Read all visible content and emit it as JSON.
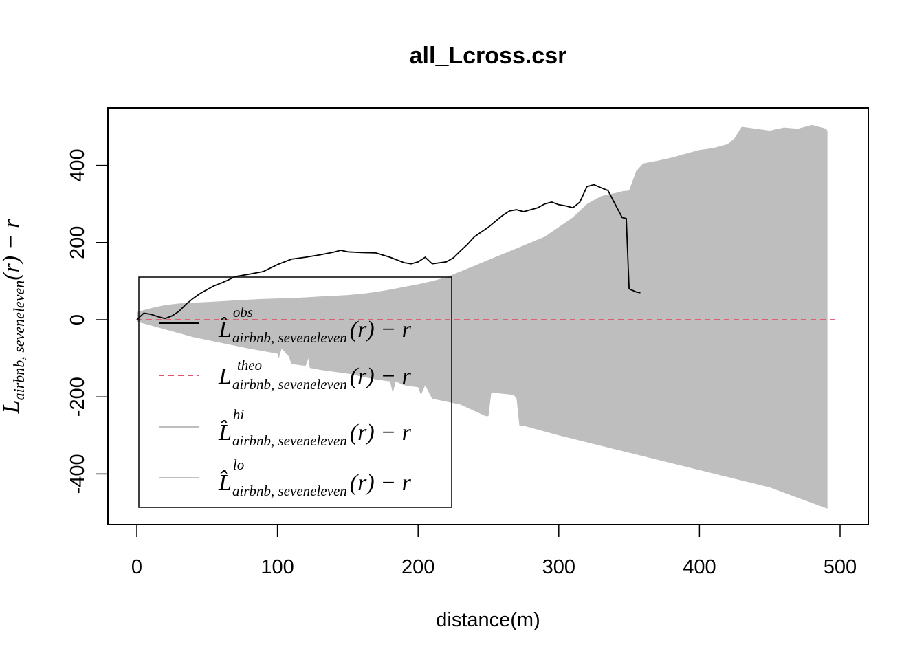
{
  "chart_data": {
    "type": "line",
    "title": "all_Lcross.csr",
    "xlabel": "distance(m)",
    "ylabel": {
      "base": "L",
      "sub": "airbnb, seveneleven",
      "suffix": "(r) − r"
    },
    "xlim": [
      0,
      500
    ],
    "ylim": [
      -480,
      480
    ],
    "xticks": [
      0,
      100,
      200,
      300,
      400,
      500
    ],
    "yticks": [
      -400,
      -200,
      0,
      200,
      400
    ],
    "legend_position": "bottom-left",
    "colors": {
      "obs": "#000000",
      "theo": "#DF536B",
      "envelope": "#BEBEBE"
    },
    "legend": [
      {
        "key": "obs",
        "base": "L̂",
        "sup": "obs",
        "sub": "airbnb, seveneleven",
        "suffix": "(r) − r"
      },
      {
        "key": "theo",
        "base": "L",
        "sup": "theo",
        "sub": "airbnb, seveneleven",
        "suffix": "(r) − r"
      },
      {
        "key": "hi",
        "base": "L̂",
        "sup": "hi",
        "sub": "airbnb, seveneleven",
        "suffix": "(r) − r"
      },
      {
        "key": "lo",
        "base": "L̂",
        "sup": "lo",
        "sub": "airbnb, seveneleven",
        "suffix": "(r) − r"
      }
    ],
    "series": [
      {
        "key": "obs",
        "style": "solid",
        "x": [
          0,
          5,
          10,
          15,
          20,
          25,
          30,
          35,
          40,
          45,
          50,
          55,
          60,
          65,
          70,
          75,
          80,
          90,
          100,
          110,
          120,
          130,
          140,
          145,
          150,
          160,
          170,
          180,
          190,
          195,
          200,
          205,
          210,
          220,
          225,
          230,
          235,
          240,
          250,
          255,
          260,
          265,
          270,
          275,
          280,
          285,
          290,
          295,
          300,
          305,
          310,
          315,
          320,
          325,
          330,
          335,
          340,
          345,
          348,
          350,
          355,
          358
        ],
        "y": [
          0,
          17,
          14,
          8,
          3,
          10,
          22,
          40,
          55,
          68,
          78,
          88,
          95,
          103,
          112,
          115,
          118,
          125,
          143,
          157,
          162,
          168,
          175,
          180,
          176,
          174,
          173,
          162,
          148,
          145,
          150,
          162,
          145,
          150,
          160,
          178,
          195,
          215,
          240,
          255,
          270,
          282,
          285,
          280,
          285,
          290,
          300,
          305,
          298,
          295,
          290,
          305,
          345,
          350,
          342,
          335,
          300,
          265,
          262,
          80,
          72,
          70
        ]
      },
      {
        "key": "theo",
        "style": "dashed",
        "x": [
          0,
          497
        ],
        "y": [
          0,
          0
        ]
      },
      {
        "key": "hi",
        "style": "band-upper",
        "x": [
          0,
          10,
          20,
          30,
          40,
          50,
          60,
          70,
          80,
          90,
          100,
          110,
          120,
          130,
          140,
          150,
          160,
          170,
          180,
          190,
          200,
          210,
          220,
          230,
          240,
          250,
          260,
          270,
          280,
          290,
          300,
          310,
          320,
          330,
          335,
          340,
          345,
          350,
          355,
          360,
          370,
          380,
          390,
          400,
          410,
          420,
          425,
          430,
          440,
          450,
          460,
          470,
          480,
          490,
          491
        ],
        "y": [
          20,
          30,
          38,
          42,
          44,
          46,
          48,
          50,
          52,
          54,
          55,
          56,
          58,
          60,
          62,
          64,
          67,
          72,
          78,
          85,
          92,
          100,
          110,
          125,
          140,
          155,
          170,
          185,
          200,
          215,
          240,
          265,
          300,
          320,
          325,
          328,
          333,
          335,
          385,
          405,
          412,
          420,
          430,
          440,
          445,
          455,
          470,
          500,
          495,
          490,
          498,
          495,
          505,
          495,
          490
        ]
      },
      {
        "key": "lo",
        "style": "band-lower",
        "x": [
          0,
          20,
          40,
          60,
          80,
          100,
          101,
          103,
          108,
          110,
          120,
          122,
          123,
          130,
          150,
          170,
          180,
          182,
          184,
          187,
          190,
          200,
          202,
          205,
          210,
          230,
          248,
          250,
          252,
          255,
          268,
          270,
          272,
          275,
          300,
          350,
          400,
          450,
          491
        ],
        "y": [
          -5,
          -25,
          -45,
          -60,
          -75,
          -88,
          -100,
          -75,
          -95,
          -115,
          -120,
          -100,
          -125,
          -130,
          -140,
          -155,
          -160,
          -190,
          -160,
          -165,
          -170,
          -175,
          -195,
          -170,
          -205,
          -220,
          -250,
          -250,
          -190,
          -190,
          -195,
          -205,
          -275,
          -275,
          -300,
          -345,
          -390,
          -435,
          -490
        ]
      }
    ]
  }
}
